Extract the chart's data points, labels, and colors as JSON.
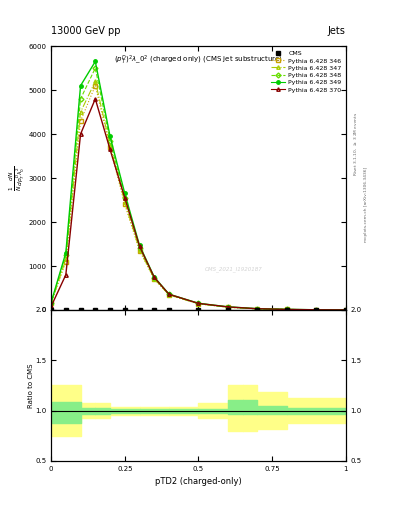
{
  "title_top": "13000 GeV pp",
  "title_right": "Jets",
  "plot_title": "$(p_T^D)^2\\lambda\\_0^2$ (charged only) (CMS jet substructure)",
  "xlabel": "pTD2 (charged-only)",
  "ylabel_lines": [
    "$\\frac{1}{N}$",
    "$\\frac{dN}{dp_T^D\\lambda_0^2}$"
  ],
  "right_label_top": "Rivet 3.1.10, $\\geq$ 3.2M events",
  "right_label_bot": "mcplots.cern.ch [arXiv:1306.3436]",
  "watermark": "CMS_2021_I1920187",
  "legend_entries": [
    "CMS",
    "Pythia 6.428 346",
    "Pythia 6.428 347",
    "Pythia 6.428 348",
    "Pythia 6.428 349",
    "Pythia 6.428 370"
  ],
  "x_data": [
    0.0,
    0.05,
    0.1,
    0.15,
    0.2,
    0.25,
    0.3,
    0.35,
    0.4,
    0.5,
    0.6,
    0.7,
    0.8,
    0.9,
    1.0
  ],
  "cms_y": [
    5,
    5,
    5,
    5,
    5,
    5,
    5,
    5,
    5,
    5,
    5,
    5,
    5,
    5,
    5
  ],
  "p346_y": [
    150,
    1100,
    4300,
    5100,
    3700,
    2400,
    1350,
    700,
    340,
    140,
    60,
    25,
    12,
    4,
    2
  ],
  "p347_y": [
    150,
    1150,
    4500,
    5200,
    3750,
    2450,
    1370,
    710,
    345,
    142,
    62,
    26,
    13,
    4,
    2
  ],
  "p348_y": [
    160,
    1250,
    4800,
    5500,
    3850,
    2550,
    1420,
    730,
    355,
    148,
    68,
    28,
    14,
    4,
    2
  ],
  "p349_y": [
    170,
    1300,
    5100,
    5650,
    3950,
    2650,
    1470,
    750,
    360,
    152,
    72,
    30,
    15,
    5,
    2
  ],
  "p370_y": [
    80,
    800,
    4000,
    4800,
    3650,
    2550,
    1450,
    740,
    358,
    150,
    70,
    29,
    14,
    4,
    2
  ],
  "ratio_bins": [
    0.0,
    0.1,
    0.15,
    0.2,
    0.3,
    0.4,
    0.5,
    0.6,
    0.65,
    0.7,
    0.8,
    1.0
  ],
  "ratio_green_lo": [
    0.88,
    0.97,
    0.97,
    0.98,
    0.98,
    0.98,
    0.98,
    0.97,
    0.97,
    0.97,
    0.97,
    0.97
  ],
  "ratio_green_hi": [
    1.08,
    1.03,
    1.03,
    1.02,
    1.02,
    1.02,
    1.02,
    1.1,
    1.1,
    1.05,
    1.03,
    1.03
  ],
  "ratio_yellow_lo": [
    0.75,
    0.93,
    0.93,
    0.96,
    0.96,
    0.96,
    0.93,
    0.8,
    0.8,
    0.82,
    0.88,
    0.88
  ],
  "ratio_yellow_hi": [
    1.25,
    1.07,
    1.07,
    1.04,
    1.04,
    1.04,
    1.07,
    1.25,
    1.25,
    1.18,
    1.12,
    1.12
  ],
  "color_346": "#c8a000",
  "color_347": "#aacc00",
  "color_348": "#66dd00",
  "color_349": "#00cc00",
  "color_370": "#880000",
  "ylim_main": [
    0,
    6000
  ],
  "ylim_ratio": [
    0.5,
    2.0
  ],
  "xlim": [
    0.0,
    1.0
  ],
  "yticks_main": [
    0,
    1000,
    2000,
    3000,
    4000,
    5000,
    6000
  ],
  "yticks_ratio": [
    0.5,
    1.0,
    1.5,
    2.0
  ],
  "xticks": [
    0.0,
    0.25,
    0.5,
    0.75,
    1.0
  ],
  "xticklabels": [
    "0",
    "0.25",
    "0.5",
    "0.75",
    "1"
  ]
}
